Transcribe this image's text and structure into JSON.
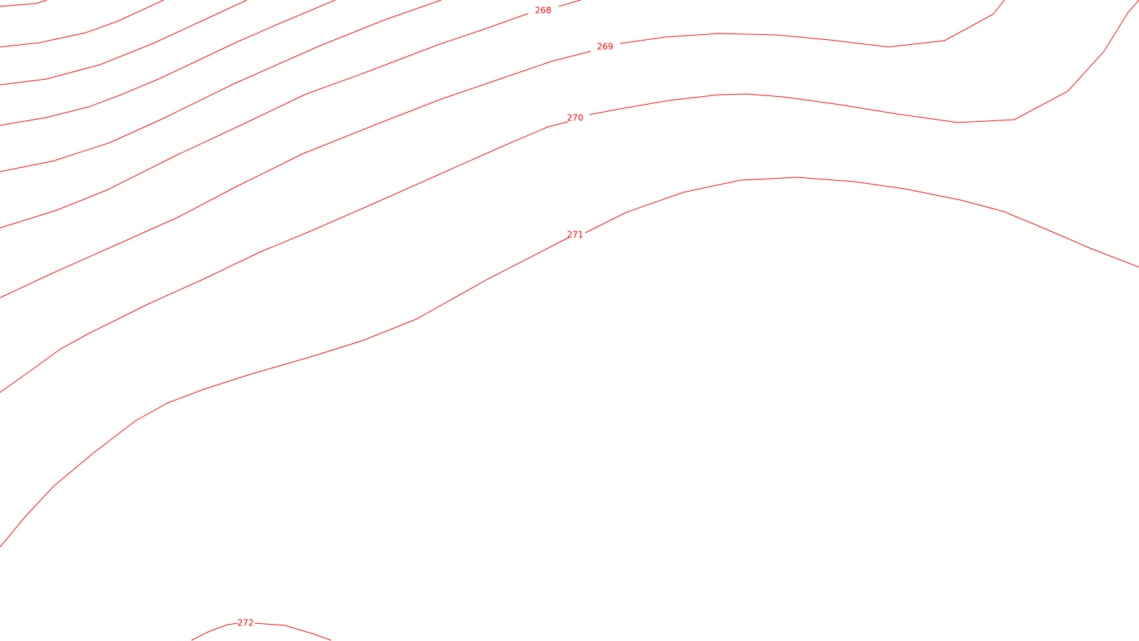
{
  "map": {
    "line_color": "#ff0000",
    "background_color": "#ffffff",
    "labels": [
      {
        "id": "268",
        "text": "268"
      },
      {
        "id": "269",
        "text": "269"
      },
      {
        "id": "270",
        "text": "270"
      },
      {
        "id": "271",
        "text": "271"
      },
      {
        "id": "272",
        "text": "272"
      }
    ]
  }
}
